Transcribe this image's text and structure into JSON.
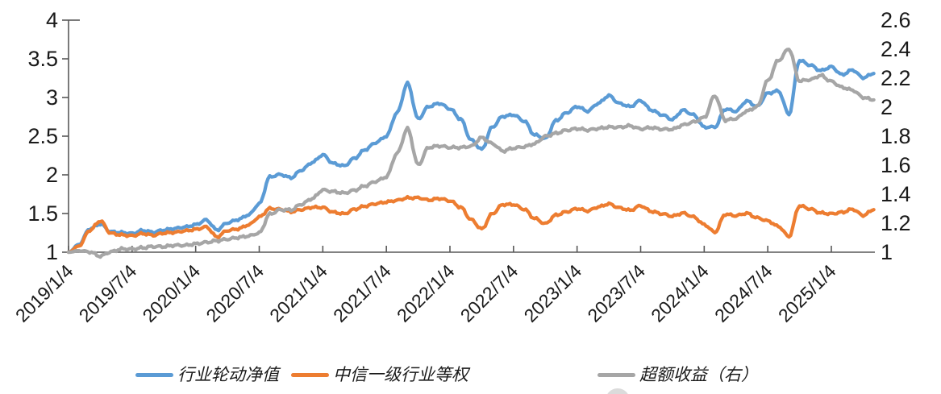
{
  "figure": {
    "background": "#ffffff",
    "axis_color": "#595959",
    "label_color": "#1a1a1a"
  },
  "chart_data": {
    "type": "line",
    "title": "",
    "xlabel": "",
    "ylabel_left": "",
    "ylabel_right": "",
    "grid": false,
    "legend_position": "bottom",
    "x_start": "2019/1/4",
    "x_end_approx": "2025/5",
    "x_tick_labels": [
      "2019/1/4",
      "2019/7/4",
      "2020/1/4",
      "2020/7/4",
      "2021/1/4",
      "2021/7/4",
      "2022/1/4",
      "2022/7/4",
      "2023/1/4",
      "2023/7/4",
      "2024/1/4",
      "2024/7/4",
      "2025/1/4"
    ],
    "left_axis": {
      "min": 1,
      "max": 4,
      "tick_labels": [
        "4",
        "3.5",
        "3",
        "2.5",
        "2",
        "1.5",
        "1"
      ]
    },
    "right_axis": {
      "min": 1,
      "max": 2.6,
      "tick_labels": [
        "2.6",
        "2.4",
        "2.2",
        "2",
        "1.8",
        "1.6",
        "1.4",
        "1.2",
        "1"
      ]
    },
    "sampling": "monthly values, Jan 2019 through May 2025",
    "series": [
      {
        "name": "行业轮动净值",
        "color": "#5B9BD5",
        "axis": "left",
        "monthly_values": [
          1.0,
          1.1,
          1.3,
          1.36,
          1.26,
          1.25,
          1.24,
          1.28,
          1.26,
          1.29,
          1.31,
          1.33,
          1.36,
          1.42,
          1.29,
          1.38,
          1.42,
          1.48,
          1.62,
          1.97,
          2.0,
          1.96,
          2.06,
          2.16,
          2.26,
          2.15,
          2.12,
          2.22,
          2.33,
          2.42,
          2.5,
          2.8,
          3.18,
          2.72,
          2.88,
          2.92,
          2.85,
          2.72,
          2.45,
          2.33,
          2.62,
          2.76,
          2.78,
          2.7,
          2.52,
          2.47,
          2.7,
          2.8,
          2.88,
          2.82,
          2.92,
          3.02,
          2.92,
          2.88,
          2.96,
          2.84,
          2.78,
          2.72,
          2.84,
          2.78,
          2.62,
          2.62,
          2.85,
          2.82,
          2.95,
          2.88,
          3.05,
          3.08,
          2.78,
          3.48,
          3.42,
          3.35,
          3.4,
          3.3,
          3.36,
          3.26,
          3.31
        ]
      },
      {
        "name": "中信一级行业等权",
        "color": "#ED7D31",
        "axis": "left",
        "monthly_values": [
          1.0,
          1.08,
          1.28,
          1.4,
          1.24,
          1.22,
          1.21,
          1.24,
          1.22,
          1.25,
          1.26,
          1.28,
          1.3,
          1.33,
          1.2,
          1.28,
          1.3,
          1.35,
          1.45,
          1.56,
          1.55,
          1.52,
          1.55,
          1.58,
          1.58,
          1.52,
          1.5,
          1.56,
          1.6,
          1.63,
          1.65,
          1.67,
          1.7,
          1.7,
          1.67,
          1.69,
          1.66,
          1.58,
          1.42,
          1.3,
          1.5,
          1.62,
          1.62,
          1.56,
          1.44,
          1.37,
          1.48,
          1.52,
          1.56,
          1.53,
          1.58,
          1.62,
          1.57,
          1.54,
          1.6,
          1.53,
          1.5,
          1.47,
          1.51,
          1.46,
          1.36,
          1.26,
          1.49,
          1.47,
          1.5,
          1.44,
          1.4,
          1.33,
          1.2,
          1.6,
          1.56,
          1.51,
          1.5,
          1.52,
          1.56,
          1.48,
          1.55
        ]
      },
      {
        "name": "超额收益（右）",
        "color": "#A6A6A6",
        "axis": "right",
        "monthly_values": [
          1.0,
          1.01,
          1.0,
          0.97,
          1.0,
          1.02,
          1.02,
          1.03,
          1.04,
          1.04,
          1.05,
          1.05,
          1.06,
          1.07,
          1.08,
          1.09,
          1.1,
          1.11,
          1.13,
          1.26,
          1.29,
          1.29,
          1.33,
          1.37,
          1.43,
          1.42,
          1.41,
          1.43,
          1.46,
          1.49,
          1.52,
          1.68,
          1.85,
          1.6,
          1.72,
          1.73,
          1.72,
          1.72,
          1.73,
          1.79,
          1.75,
          1.7,
          1.72,
          1.73,
          1.75,
          1.8,
          1.82,
          1.84,
          1.85,
          1.84,
          1.85,
          1.86,
          1.86,
          1.87,
          1.85,
          1.86,
          1.85,
          1.85,
          1.88,
          1.9,
          1.93,
          2.08,
          1.91,
          1.92,
          1.97,
          2.0,
          2.18,
          2.32,
          2.4,
          2.18,
          2.19,
          2.22,
          2.18,
          2.14,
          2.12,
          2.07,
          2.05
        ]
      }
    ]
  }
}
